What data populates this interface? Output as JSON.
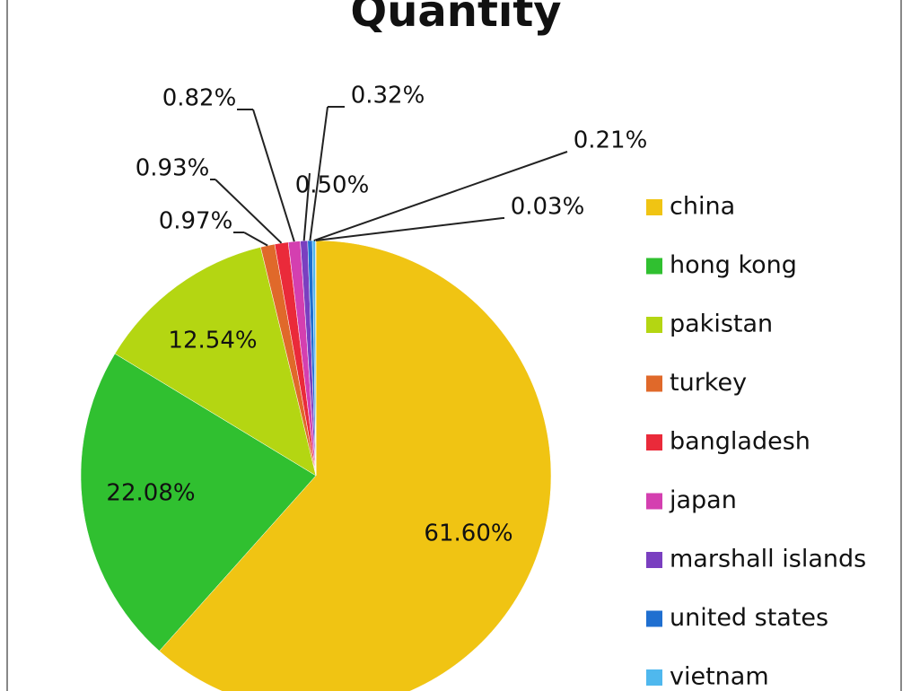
{
  "chart_data": {
    "type": "pie",
    "title": "Quantity",
    "categories": [
      "china",
      "hong kong",
      "pakistan",
      "turkey",
      "bangladesh",
      "japan",
      "marshall islands",
      "united states",
      "vietnam",
      null
    ],
    "values": [
      61.6,
      22.08,
      12.54,
      0.97,
      0.93,
      0.82,
      0.5,
      0.32,
      0.21,
      0.03
    ],
    "value_labels": [
      "61.60%",
      "22.08%",
      "12.54%",
      "0.97%",
      "0.93%",
      "0.82%",
      "0.50%",
      "0.32%",
      "0.21%",
      "0.03%"
    ],
    "colors": [
      "#f0c413",
      "#30c030",
      "#b4d612",
      "#e0692a",
      "#ea2a3a",
      "#d43fb0",
      "#7a3fc0",
      "#1f6fd0",
      "#4fb8ee",
      "#8c8c8c"
    ],
    "legend": "right"
  }
}
